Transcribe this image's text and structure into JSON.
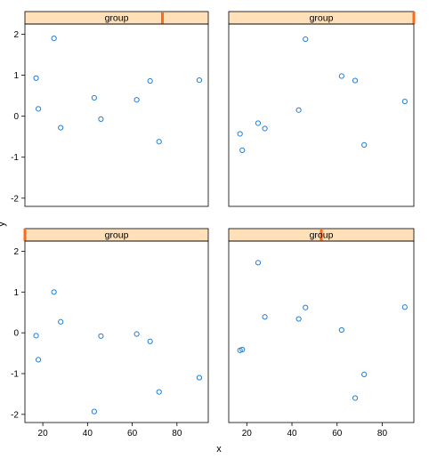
{
  "chart_data": {
    "type": "scatter",
    "layout": "2x2 lattice (trellis) panels",
    "xlabel": "x",
    "ylabel": "y",
    "xlim": [
      12,
      94
    ],
    "ylim": [
      -2.2,
      2.25
    ],
    "x_ticks": [
      20,
      40,
      60,
      80
    ],
    "y_ticks": [
      -2,
      -1,
      0,
      1,
      2
    ],
    "strip_label": "group",
    "point_color": "#1f7fdc",
    "strip_fill": "#ffe0b8",
    "strip_marker_color": "#ff6a1a",
    "panels": [
      {
        "position": "top-left",
        "strip_level": 0.75,
        "x": [
          17,
          18,
          25,
          28,
          43,
          46,
          62,
          68,
          72,
          90
        ],
        "y": [
          0.93,
          0.18,
          1.9,
          -0.28,
          0.45,
          -0.07,
          0.4,
          0.86,
          -0.62,
          0.88
        ]
      },
      {
        "position": "top-right",
        "strip_level": 1.0,
        "x": [
          17,
          18,
          25,
          28,
          43,
          46,
          62,
          68,
          72,
          90
        ],
        "y": [
          -0.43,
          -0.83,
          -0.17,
          -0.3,
          0.15,
          1.88,
          0.98,
          0.87,
          -0.7,
          0.36
        ]
      },
      {
        "position": "bottom-left",
        "strip_level": 0.0,
        "x": [
          17,
          18,
          25,
          28,
          43,
          46,
          62,
          68,
          72,
          90
        ],
        "y": [
          -0.07,
          -0.66,
          1.0,
          0.27,
          -1.93,
          -0.08,
          -0.03,
          -0.21,
          -1.45,
          -1.1
        ]
      },
      {
        "position": "bottom-right",
        "strip_level": 0.5,
        "x": [
          17,
          18,
          25,
          28,
          43,
          46,
          62,
          68,
          72,
          90
        ],
        "y": [
          -0.43,
          -0.41,
          1.72,
          0.39,
          0.34,
          0.62,
          0.07,
          -1.6,
          -1.02,
          0.63
        ]
      }
    ]
  }
}
